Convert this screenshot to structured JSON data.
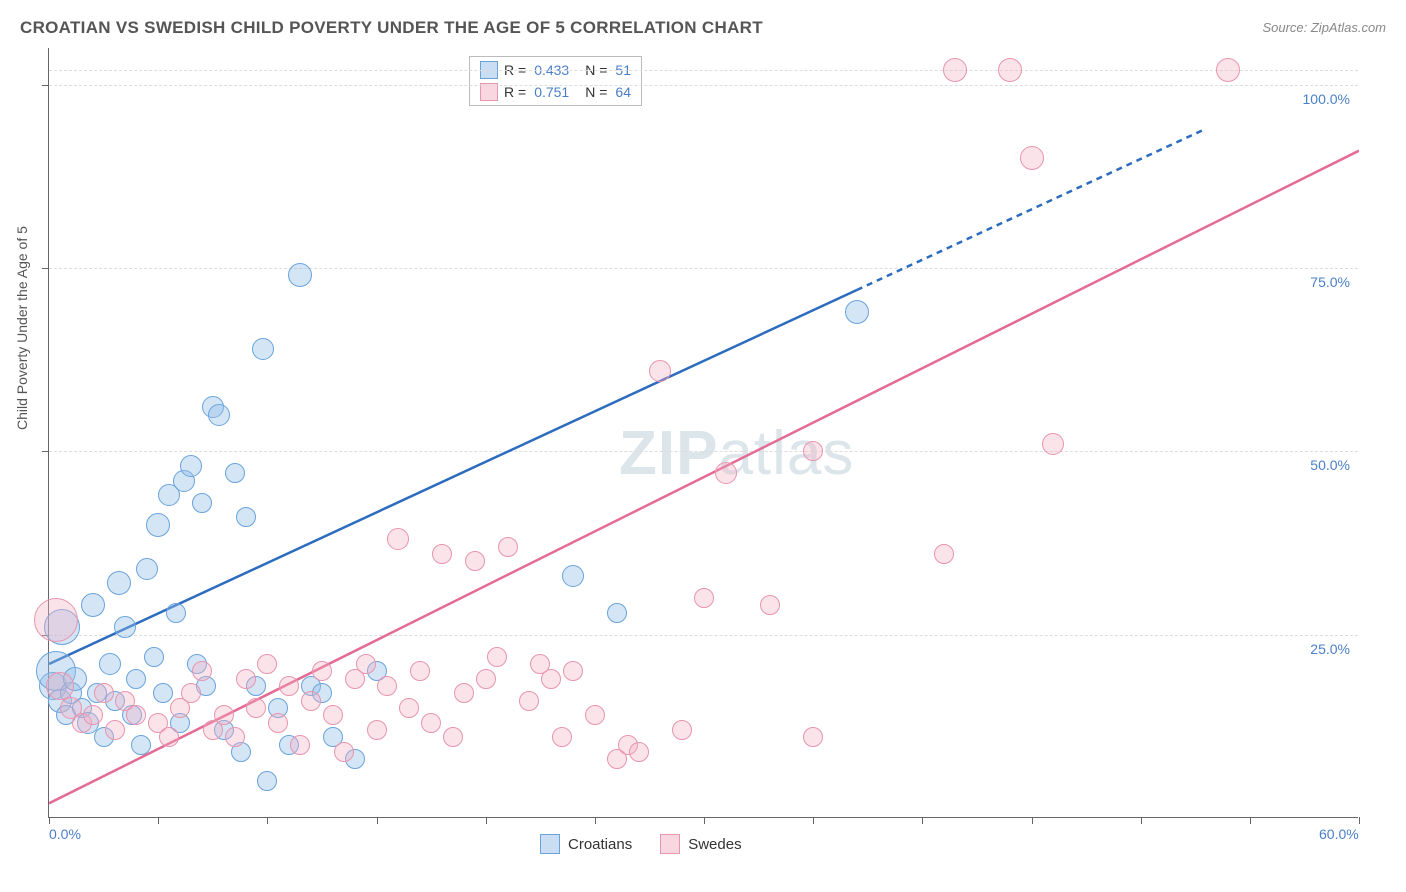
{
  "title": "CROATIAN VS SWEDISH CHILD POVERTY UNDER THE AGE OF 5 CORRELATION CHART",
  "source": "Source: ZipAtlas.com",
  "ylabel": "Child Poverty Under the Age of 5",
  "watermark_bold": "ZIP",
  "watermark_rest": "atlas",
  "chart": {
    "type": "scatter",
    "background_color": "#ffffff",
    "grid_color": "#dddddd",
    "axis_color": "#666666",
    "tick_label_color": "#4a7fc8",
    "xlim": [
      0,
      60
    ],
    "ylim": [
      0,
      105
    ],
    "xtick_positions": [
      0,
      5,
      10,
      15,
      20,
      25,
      30,
      35,
      40,
      45,
      50,
      55,
      60
    ],
    "xtick_labels": {
      "0": "0.0%",
      "60": "60.0%"
    },
    "ytick_positions": [
      25,
      50,
      75,
      100
    ],
    "ytick_labels": [
      "25.0%",
      "50.0%",
      "75.0%",
      "100.0%"
    ],
    "series": [
      {
        "name": "Croatians",
        "color_fill": "rgba(148,189,232,0.4)",
        "color_stroke": "#6aa3dc",
        "marker": "circle",
        "R": "0.433",
        "N": "51",
        "trend": {
          "x1": 0,
          "y1": 21,
          "x2": 37,
          "y2": 72,
          "dash_x2": 53,
          "dash_y2": 94,
          "color": "#2c6cbf",
          "width": 2.5
        },
        "points": [
          {
            "x": 0.2,
            "y": 18,
            "r": 14
          },
          {
            "x": 0.3,
            "y": 20,
            "r": 20
          },
          {
            "x": 0.5,
            "y": 16,
            "r": 12
          },
          {
            "x": 0.6,
            "y": 26,
            "r": 18
          },
          {
            "x": 0.8,
            "y": 14,
            "r": 10
          },
          {
            "x": 1.0,
            "y": 17,
            "r": 11
          },
          {
            "x": 1.2,
            "y": 19,
            "r": 12
          },
          {
            "x": 1.5,
            "y": 15,
            "r": 10
          },
          {
            "x": 1.8,
            "y": 13,
            "r": 11
          },
          {
            "x": 2.0,
            "y": 29,
            "r": 12
          },
          {
            "x": 2.2,
            "y": 17,
            "r": 10
          },
          {
            "x": 2.5,
            "y": 11,
            "r": 10
          },
          {
            "x": 2.8,
            "y": 21,
            "r": 11
          },
          {
            "x": 3.0,
            "y": 16,
            "r": 10
          },
          {
            "x": 3.2,
            "y": 32,
            "r": 12
          },
          {
            "x": 3.5,
            "y": 26,
            "r": 11
          },
          {
            "x": 3.8,
            "y": 14,
            "r": 10
          },
          {
            "x": 4.0,
            "y": 19,
            "r": 10
          },
          {
            "x": 4.2,
            "y": 10,
            "r": 10
          },
          {
            "x": 4.5,
            "y": 34,
            "r": 11
          },
          {
            "x": 4.8,
            "y": 22,
            "r": 10
          },
          {
            "x": 5.0,
            "y": 40,
            "r": 12
          },
          {
            "x": 5.2,
            "y": 17,
            "r": 10
          },
          {
            "x": 5.5,
            "y": 44,
            "r": 11
          },
          {
            "x": 5.8,
            "y": 28,
            "r": 10
          },
          {
            "x": 6.0,
            "y": 13,
            "r": 10
          },
          {
            "x": 6.2,
            "y": 46,
            "r": 11
          },
          {
            "x": 6.5,
            "y": 48,
            "r": 11
          },
          {
            "x": 6.8,
            "y": 21,
            "r": 10
          },
          {
            "x": 7.0,
            "y": 43,
            "r": 10
          },
          {
            "x": 7.2,
            "y": 18,
            "r": 10
          },
          {
            "x": 7.5,
            "y": 56,
            "r": 11
          },
          {
            "x": 7.8,
            "y": 55,
            "r": 11
          },
          {
            "x": 8.0,
            "y": 12,
            "r": 10
          },
          {
            "x": 8.5,
            "y": 47,
            "r": 10
          },
          {
            "x": 8.8,
            "y": 9,
            "r": 10
          },
          {
            "x": 9.0,
            "y": 41,
            "r": 10
          },
          {
            "x": 9.5,
            "y": 18,
            "r": 10
          },
          {
            "x": 9.8,
            "y": 64,
            "r": 11
          },
          {
            "x": 10.0,
            "y": 5,
            "r": 10
          },
          {
            "x": 10.5,
            "y": 15,
            "r": 10
          },
          {
            "x": 11.0,
            "y": 10,
            "r": 10
          },
          {
            "x": 11.5,
            "y": 74,
            "r": 12
          },
          {
            "x": 12.0,
            "y": 18,
            "r": 10
          },
          {
            "x": 12.5,
            "y": 17,
            "r": 10
          },
          {
            "x": 13.0,
            "y": 11,
            "r": 10
          },
          {
            "x": 14.0,
            "y": 8,
            "r": 10
          },
          {
            "x": 15.0,
            "y": 20,
            "r": 10
          },
          {
            "x": 24.0,
            "y": 33,
            "r": 11
          },
          {
            "x": 26.0,
            "y": 28,
            "r": 10
          },
          {
            "x": 37.0,
            "y": 69,
            "r": 12
          }
        ]
      },
      {
        "name": "Swedes",
        "color_fill": "rgba(244,176,196,0.35)",
        "color_stroke": "#e895af",
        "marker": "circle",
        "R": "0.751",
        "N": "64",
        "trend": {
          "x1": 0,
          "y1": 2,
          "x2": 60,
          "y2": 91,
          "color": "#e46b93",
          "width": 2.5
        },
        "points": [
          {
            "x": 0.3,
            "y": 27,
            "r": 22
          },
          {
            "x": 0.5,
            "y": 18,
            "r": 14
          },
          {
            "x": 1.0,
            "y": 15,
            "r": 11
          },
          {
            "x": 1.5,
            "y": 13,
            "r": 10
          },
          {
            "x": 2.0,
            "y": 14,
            "r": 10
          },
          {
            "x": 2.5,
            "y": 17,
            "r": 10
          },
          {
            "x": 3.0,
            "y": 12,
            "r": 10
          },
          {
            "x": 3.5,
            "y": 16,
            "r": 10
          },
          {
            "x": 4.0,
            "y": 14,
            "r": 10
          },
          {
            "x": 5.0,
            "y": 13,
            "r": 10
          },
          {
            "x": 5.5,
            "y": 11,
            "r": 10
          },
          {
            "x": 6.0,
            "y": 15,
            "r": 10
          },
          {
            "x": 6.5,
            "y": 17,
            "r": 10
          },
          {
            "x": 7.0,
            "y": 20,
            "r": 10
          },
          {
            "x": 7.5,
            "y": 12,
            "r": 10
          },
          {
            "x": 8.0,
            "y": 14,
            "r": 10
          },
          {
            "x": 8.5,
            "y": 11,
            "r": 10
          },
          {
            "x": 9.0,
            "y": 19,
            "r": 10
          },
          {
            "x": 9.5,
            "y": 15,
            "r": 10
          },
          {
            "x": 10.0,
            "y": 21,
            "r": 10
          },
          {
            "x": 10.5,
            "y": 13,
            "r": 10
          },
          {
            "x": 11.0,
            "y": 18,
            "r": 10
          },
          {
            "x": 11.5,
            "y": 10,
            "r": 10
          },
          {
            "x": 12.0,
            "y": 16,
            "r": 10
          },
          {
            "x": 12.5,
            "y": 20,
            "r": 10
          },
          {
            "x": 13.0,
            "y": 14,
            "r": 10
          },
          {
            "x": 13.5,
            "y": 9,
            "r": 10
          },
          {
            "x": 14.0,
            "y": 19,
            "r": 10
          },
          {
            "x": 14.5,
            "y": 21,
            "r": 10
          },
          {
            "x": 15.0,
            "y": 12,
            "r": 10
          },
          {
            "x": 15.5,
            "y": 18,
            "r": 10
          },
          {
            "x": 16.0,
            "y": 38,
            "r": 11
          },
          {
            "x": 16.5,
            "y": 15,
            "r": 10
          },
          {
            "x": 17.0,
            "y": 20,
            "r": 10
          },
          {
            "x": 17.5,
            "y": 13,
            "r": 10
          },
          {
            "x": 18.0,
            "y": 36,
            "r": 10
          },
          {
            "x": 18.5,
            "y": 11,
            "r": 10
          },
          {
            "x": 19.0,
            "y": 17,
            "r": 10
          },
          {
            "x": 19.5,
            "y": 35,
            "r": 10
          },
          {
            "x": 20.0,
            "y": 19,
            "r": 10
          },
          {
            "x": 20.5,
            "y": 22,
            "r": 10
          },
          {
            "x": 21.0,
            "y": 37,
            "r": 10
          },
          {
            "x": 22.0,
            "y": 16,
            "r": 10
          },
          {
            "x": 23.0,
            "y": 19,
            "r": 10
          },
          {
            "x": 23.5,
            "y": 11,
            "r": 10
          },
          {
            "x": 24.0,
            "y": 20,
            "r": 10
          },
          {
            "x": 25.0,
            "y": 14,
            "r": 10
          },
          {
            "x": 26.0,
            "y": 8,
            "r": 10
          },
          {
            "x": 26.5,
            "y": 10,
            "r": 10
          },
          {
            "x": 27.0,
            "y": 9,
            "r": 10
          },
          {
            "x": 28.0,
            "y": 61,
            "r": 11
          },
          {
            "x": 29.0,
            "y": 12,
            "r": 10
          },
          {
            "x": 30.0,
            "y": 30,
            "r": 10
          },
          {
            "x": 31.0,
            "y": 47,
            "r": 11
          },
          {
            "x": 33.0,
            "y": 29,
            "r": 10
          },
          {
            "x": 35.0,
            "y": 11,
            "r": 10
          },
          {
            "x": 41.0,
            "y": 36,
            "r": 10
          },
          {
            "x": 41.5,
            "y": 102,
            "r": 12
          },
          {
            "x": 44.0,
            "y": 102,
            "r": 12
          },
          {
            "x": 45.0,
            "y": 90,
            "r": 12
          },
          {
            "x": 46.0,
            "y": 51,
            "r": 11
          },
          {
            "x": 54.0,
            "y": 102,
            "r": 12
          },
          {
            "x": 35.0,
            "y": 50,
            "r": 10
          },
          {
            "x": 22.5,
            "y": 21,
            "r": 10
          }
        ]
      }
    ]
  },
  "bottom_legend": {
    "item1": "Croatians",
    "item2": "Swedes"
  }
}
